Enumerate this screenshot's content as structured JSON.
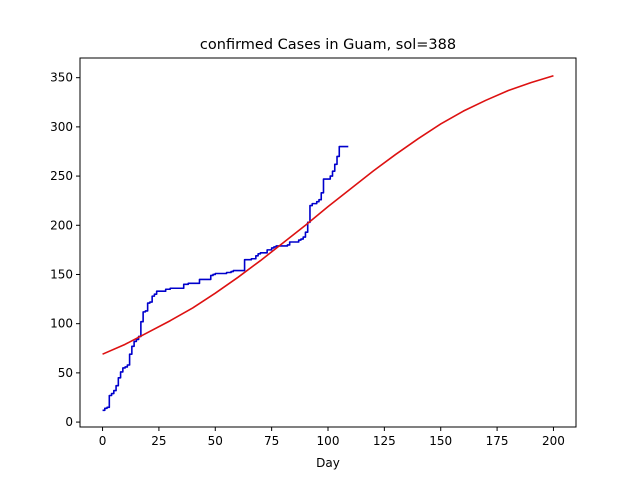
{
  "chart_data": {
    "type": "line",
    "title": "confirmed Cases in Guam, sol=388",
    "xlabel": "Day",
    "ylabel": "",
    "xlim": [
      -10,
      210
    ],
    "ylim": [
      -5,
      370
    ],
    "xticks": [
      0,
      25,
      50,
      75,
      100,
      125,
      150,
      175,
      200
    ],
    "yticks": [
      0,
      50,
      100,
      150,
      200,
      250,
      300,
      350
    ],
    "grid": false,
    "series": [
      {
        "color": "#0000cc",
        "step": true,
        "x": [
          0,
          1,
          2,
          3,
          4,
          5,
          6,
          7,
          8,
          9,
          10,
          11,
          12,
          13,
          14,
          15,
          16,
          17,
          18,
          19,
          20,
          21,
          22,
          23,
          24,
          25,
          26,
          27,
          28,
          29,
          30,
          31,
          32,
          33,
          34,
          35,
          36,
          37,
          38,
          39,
          40,
          41,
          42,
          43,
          44,
          45,
          46,
          47,
          48,
          49,
          50,
          51,
          52,
          53,
          54,
          55,
          56,
          57,
          58,
          59,
          60,
          61,
          62,
          63,
          64,
          65,
          66,
          67,
          68,
          69,
          70,
          71,
          72,
          73,
          74,
          75,
          76,
          77,
          78,
          79,
          80,
          81,
          82,
          83,
          84,
          85,
          86,
          87,
          88,
          89,
          90,
          91,
          92,
          93,
          94,
          95,
          96,
          97,
          98,
          99,
          100,
          101,
          102,
          103,
          104,
          105,
          106,
          107,
          108,
          109
        ],
        "y": [
          12,
          14,
          15,
          27,
          29,
          32,
          37,
          45,
          51,
          55,
          56,
          58,
          69,
          77,
          82,
          84,
          87,
          102,
          112,
          113,
          121,
          122,
          128,
          130,
          133,
          133,
          133,
          133,
          135,
          135,
          136,
          136,
          136,
          136,
          136,
          136,
          140,
          140,
          141,
          141,
          141,
          141,
          141,
          145,
          145,
          145,
          145,
          145,
          149,
          150,
          151,
          151,
          151,
          151,
          151,
          152,
          152,
          153,
          154,
          154,
          154,
          154,
          154,
          165,
          165,
          165,
          166,
          166,
          169,
          171,
          172,
          172,
          172,
          175,
          175,
          177,
          178,
          179,
          179,
          179,
          179,
          179,
          180,
          183,
          183,
          183,
          183,
          185,
          186,
          188,
          193,
          203,
          220,
          222,
          222,
          224,
          226,
          233,
          247,
          247,
          247,
          250,
          255,
          262,
          270,
          280,
          280,
          280,
          280,
          280
        ]
      },
      {
        "color": "#dd1111",
        "step": false,
        "x": [
          0,
          10,
          20,
          30,
          40,
          50,
          60,
          70,
          80,
          90,
          100,
          110,
          120,
          130,
          140,
          150,
          160,
          170,
          180,
          190,
          200
        ],
        "y": [
          69,
          79,
          91,
          103,
          116,
          131,
          147,
          164,
          182,
          200,
          219,
          237,
          255,
          272,
          288,
          303,
          316,
          327,
          337,
          345,
          352
        ]
      }
    ]
  }
}
